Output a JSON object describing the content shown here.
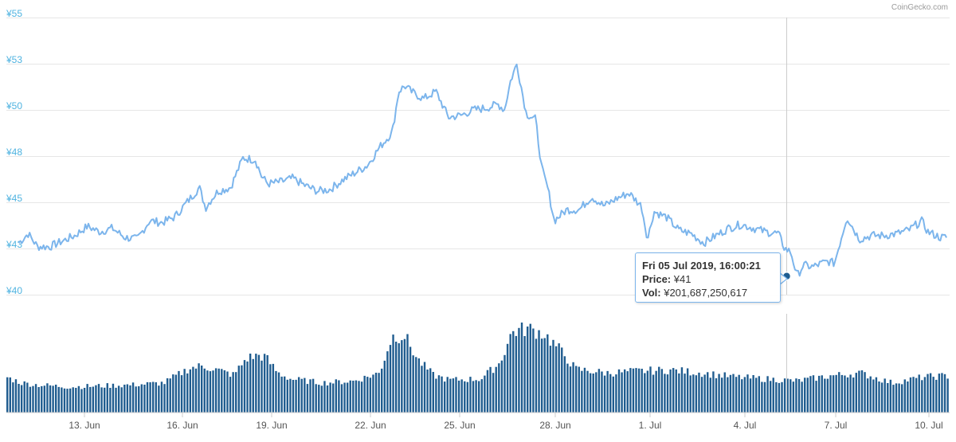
{
  "credit": "CoinGecko.com",
  "tooltip": {
    "date": "Fri 05 Jul 2019, 16:00:21",
    "price_label": "Price:",
    "price_value": "¥41",
    "vol_label": "Vol:",
    "vol_value": "¥201,687,250,617"
  },
  "colors": {
    "price_line": "#7cb5ec",
    "volume_bar": "#1f5c8f",
    "axis_label": "#4fb3e0",
    "crosshair": "#cccccc",
    "marker": "#1f5c8f"
  },
  "chart_data": {
    "type": "line",
    "title": "",
    "y_axis": {
      "ticks": [
        "¥40",
        "¥43",
        "¥45",
        "¥48",
        "¥50",
        "¥53",
        "¥55"
      ],
      "ylim": [
        40,
        55
      ]
    },
    "x_axis": {
      "ticks": [
        "13. Jun",
        "16. Jun",
        "19. Jun",
        "22. Jun",
        "25. Jun",
        "28. Jun",
        "1. Jul",
        "4. Jul",
        "7. Jul",
        "10. Jul"
      ]
    },
    "hover_point": {
      "x": "2019-07-05 16:00",
      "price": 41
    },
    "series": [
      {
        "type": "line",
        "x_days": [
          11.0,
          11.3,
          11.6,
          12.0,
          12.4,
          12.8,
          13.2,
          13.6,
          14.0,
          14.4,
          14.8,
          15.2,
          15.6,
          16.0,
          16.4,
          16.8,
          17.0,
          17.2,
          17.4,
          17.8,
          18.2,
          18.6,
          18.8,
          19.0,
          19.4,
          19.8,
          20.2,
          20.6,
          21.0,
          21.4,
          21.8,
          22.2,
          22.6,
          23.0,
          23.2,
          23.4,
          23.6,
          24.0,
          24.4,
          24.8,
          25.2,
          25.6,
          26.0,
          26.4,
          26.6,
          26.8,
          27.0,
          27.3,
          27.6,
          27.8,
          28.0,
          28.2,
          28.6,
          29.0,
          29.4,
          29.8,
          30.2,
          30.6,
          31.0,
          31.2,
          31.4,
          31.8,
          32.2,
          32.6,
          33.0,
          33.4,
          33.8,
          34.2,
          34.6,
          35.0,
          35.4,
          35.6,
          35.8,
          36.0,
          36.2,
          36.5,
          36.8,
          37.0,
          37.2,
          37.6,
          38.0,
          38.4,
          38.8,
          39.2,
          39.6,
          40.0,
          40.2,
          40.6
        ],
        "values": [
          42.8,
          43.3,
          42.6,
          42.6,
          42.9,
          43.2,
          43.7,
          43.4,
          43.6,
          43.1,
          43.0,
          44.0,
          43.9,
          44.2,
          45.0,
          45.8,
          44.7,
          45.2,
          45.6,
          45.8,
          47.4,
          47.3,
          46.4,
          46.0,
          46.1,
          46.3,
          45.9,
          45.6,
          45.7,
          46.2,
          46.6,
          47.0,
          48.0,
          48.8,
          51.0,
          51.3,
          51.0,
          50.6,
          51.0,
          49.6,
          49.7,
          50.0,
          50.1,
          50.3,
          50.0,
          51.6,
          52.5,
          49.8,
          49.5,
          46.8,
          45.7,
          44.0,
          44.6,
          44.6,
          45.3,
          44.8,
          45.2,
          45.5,
          44.8,
          43.0,
          44.5,
          44.2,
          43.5,
          43.3,
          42.8,
          43.2,
          43.6,
          43.8,
          43.6,
          43.4,
          43.3,
          42.5,
          42.3,
          41.0,
          41.6,
          41.5,
          41.7,
          41.8,
          41.7,
          44.2,
          43.0,
          43.2,
          43.2,
          43.3,
          43.5,
          44.0,
          43.4,
          43.1
        ]
      },
      {
        "name": "Vol",
        "type": "bar",
        "x_days": [
          11.0,
          11.5,
          12.0,
          13.0,
          14.0,
          15.0,
          16.0,
          16.8,
          17.2,
          17.6,
          18.2,
          18.6,
          19.0,
          19.2,
          19.6,
          20.0,
          21.0,
          22.0,
          22.8,
          23.2,
          23.6,
          24.0,
          24.5,
          25.0,
          26.0,
          26.6,
          27.0,
          27.5,
          28.0,
          28.6,
          29.0,
          30.0,
          31.0,
          32.0,
          33.0,
          34.0,
          35.0,
          36.0,
          37.0,
          38.0,
          39.0,
          40.0,
          40.6
        ],
        "relative_level": [
          0.36,
          0.3,
          0.28,
          0.26,
          0.27,
          0.28,
          0.3,
          0.45,
          0.47,
          0.44,
          0.38,
          0.55,
          0.58,
          0.56,
          0.4,
          0.34,
          0.3,
          0.32,
          0.4,
          0.77,
          0.78,
          0.54,
          0.38,
          0.33,
          0.34,
          0.5,
          0.82,
          0.85,
          0.8,
          0.6,
          0.44,
          0.4,
          0.42,
          0.43,
          0.4,
          0.36,
          0.34,
          0.32,
          0.37,
          0.4,
          0.3,
          0.36,
          0.37
        ]
      }
    ]
  }
}
